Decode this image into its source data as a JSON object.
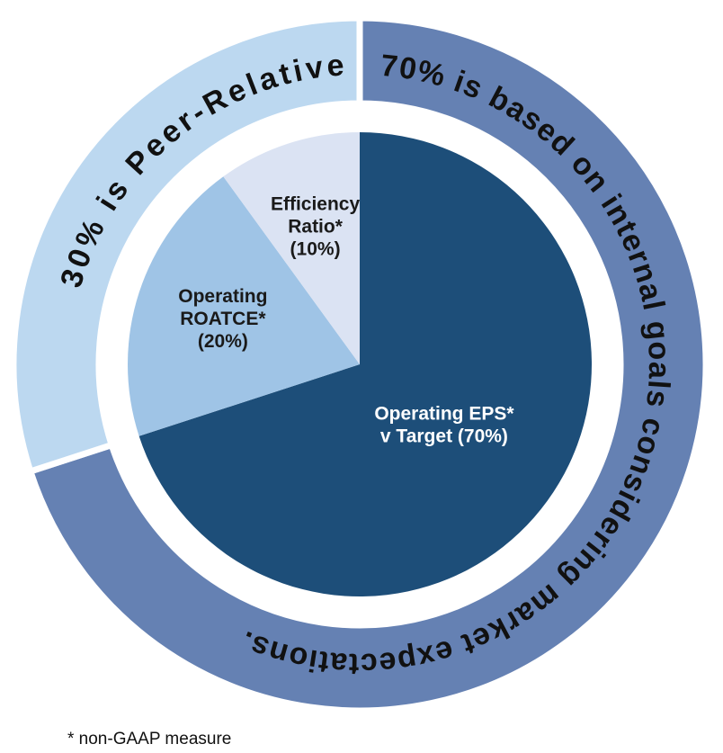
{
  "chart_data": [
    {
      "type": "pie",
      "categories": [
        [
          "Operating EPS*",
          "v Target (70%)"
        ],
        [
          "Operating",
          "ROATCE*",
          "(20%)"
        ],
        [
          "Efficiency",
          "Ratio*",
          "(10%)"
        ]
      ],
      "values": [
        70,
        20,
        10
      ],
      "colors": [
        "#1d4e79",
        "#9fc4e6",
        "#dbe3f3"
      ]
    },
    {
      "type": "donut",
      "categories": [
        "70% is based on internal goals considering market expectations.",
        "30% is Peer-Relative"
      ],
      "values": [
        70,
        30
      ],
      "colors": [
        "#6581b3",
        "#bcd8f0"
      ]
    }
  ],
  "footnote": "* non-GAAP measure"
}
